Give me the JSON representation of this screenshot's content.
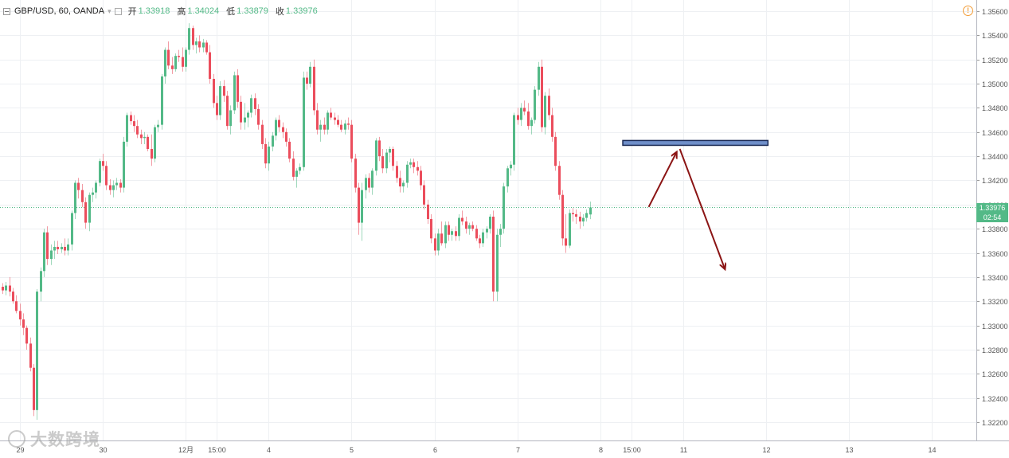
{
  "legend": {
    "symbol": "GBP/USD, 60, OANDA",
    "open_label": "开",
    "open": "1.33918",
    "high_label": "高",
    "high": "1.34024",
    "low_label": "低",
    "low": "1.33879",
    "close_label": "收",
    "close": "1.33976"
  },
  "price_tag": {
    "price": "1.33976",
    "countdown": "02:54"
  },
  "watermark": {
    "text": "大数跨境"
  },
  "colors": {
    "up": "#53b987",
    "down": "#eb4d5c",
    "level_zone": "#6f8fc9",
    "projection_arrow": "#8b1414"
  },
  "icons": {
    "alert": "alert-icon",
    "collapse": "collapse-icon"
  },
  "chart_data": {
    "type": "candlestick",
    "title": "GBP/USD, 60, OANDA",
    "ylim": [
      1.3208,
      1.3569
    ],
    "y_ticks": [
      "1.35600",
      "1.35400",
      "1.35200",
      "1.35000",
      "1.34800",
      "1.34600",
      "1.34400",
      "1.34200",
      "1.34000",
      "1.33800",
      "1.33600",
      "1.33400",
      "1.33200",
      "1.33000",
      "1.32800",
      "1.32600",
      "1.32400",
      "1.32200"
    ],
    "x_ticks": [
      {
        "label": "29",
        "bar": 5
      },
      {
        "label": "30",
        "bar": 29
      },
      {
        "label": "12月",
        "bar": 53
      },
      {
        "label": "15:00",
        "bar": 62
      },
      {
        "label": "4",
        "bar": 77
      },
      {
        "label": "5",
        "bar": 101
      },
      {
        "label": "6",
        "bar": 125
      },
      {
        "label": "7",
        "bar": 149
      },
      {
        "label": "8",
        "bar": 173
      },
      {
        "label": "15:00",
        "bar": 182
      },
      {
        "label": "11",
        "bar": 197
      },
      {
        "label": "12",
        "bar": 221
      },
      {
        "label": "13",
        "bar": 245
      },
      {
        "label": "14",
        "bar": 269
      }
    ],
    "current_price": 1.33976,
    "grid": true,
    "candles": [
      [
        1.3332,
        1.3335,
        1.3326,
        1.3329
      ],
      [
        1.3329,
        1.3336,
        1.3325,
        1.3333
      ],
      [
        1.3333,
        1.334,
        1.3324,
        1.3328
      ],
      [
        1.3328,
        1.3331,
        1.3318,
        1.332
      ],
      [
        1.332,
        1.3325,
        1.331,
        1.3312
      ],
      [
        1.3312,
        1.3318,
        1.33,
        1.3305
      ],
      [
        1.3305,
        1.331,
        1.3292,
        1.3298
      ],
      [
        1.3298,
        1.33,
        1.328,
        1.3285
      ],
      [
        1.3285,
        1.329,
        1.3262,
        1.3265
      ],
      [
        1.3265,
        1.3268,
        1.3225,
        1.323
      ],
      [
        1.323,
        1.333,
        1.3222,
        1.3328
      ],
      [
        1.3328,
        1.3348,
        1.332,
        1.3345
      ],
      [
        1.3345,
        1.338,
        1.334,
        1.3377
      ],
      [
        1.3377,
        1.3382,
        1.335,
        1.3355
      ],
      [
        1.3355,
        1.3367,
        1.335,
        1.3362
      ],
      [
        1.3362,
        1.337,
        1.3355,
        1.3365
      ],
      [
        1.3365,
        1.337,
        1.3359,
        1.3363
      ],
      [
        1.3363,
        1.3368,
        1.336,
        1.3365
      ],
      [
        1.3365,
        1.3372,
        1.3358,
        1.3362
      ],
      [
        1.3362,
        1.3372,
        1.3358,
        1.3367
      ],
      [
        1.3367,
        1.3395,
        1.3362,
        1.3393
      ],
      [
        1.3393,
        1.342,
        1.3388,
        1.3418
      ],
      [
        1.3418,
        1.3422,
        1.3405,
        1.3412
      ],
      [
        1.3412,
        1.3417,
        1.3398,
        1.3402
      ],
      [
        1.3402,
        1.3406,
        1.338,
        1.3385
      ],
      [
        1.3385,
        1.341,
        1.3378,
        1.3408
      ],
      [
        1.3408,
        1.3414,
        1.3402,
        1.341
      ],
      [
        1.341,
        1.342,
        1.3405,
        1.3418
      ],
      [
        1.3418,
        1.3438,
        1.3415,
        1.3436
      ],
      [
        1.3436,
        1.3442,
        1.3428,
        1.3432
      ],
      [
        1.3432,
        1.3436,
        1.3412,
        1.3416
      ],
      [
        1.3416,
        1.3421,
        1.3408,
        1.3412
      ],
      [
        1.3412,
        1.342,
        1.3406,
        1.3416
      ],
      [
        1.3416,
        1.3422,
        1.3412,
        1.3418
      ],
      [
        1.3418,
        1.3421,
        1.341,
        1.3414
      ],
      [
        1.3414,
        1.3456,
        1.341,
        1.3452
      ],
      [
        1.3452,
        1.3476,
        1.3448,
        1.3474
      ],
      [
        1.3474,
        1.3477,
        1.3466,
        1.3469
      ],
      [
        1.3469,
        1.3474,
        1.346,
        1.3465
      ],
      [
        1.3465,
        1.347,
        1.3455,
        1.3458
      ],
      [
        1.3458,
        1.3462,
        1.345,
        1.3455
      ],
      [
        1.3455,
        1.346,
        1.345,
        1.3456
      ],
      [
        1.3456,
        1.3458,
        1.3444,
        1.3446
      ],
      [
        1.3446,
        1.3458,
        1.3432,
        1.3438
      ],
      [
        1.3438,
        1.3466,
        1.3435,
        1.3464
      ],
      [
        1.3464,
        1.347,
        1.346,
        1.3466
      ],
      [
        1.3466,
        1.3508,
        1.3462,
        1.3506
      ],
      [
        1.3506,
        1.353,
        1.35,
        1.3528
      ],
      [
        1.3528,
        1.3535,
        1.3512,
        1.3515
      ],
      [
        1.3515,
        1.3522,
        1.3508,
        1.3512
      ],
      [
        1.3512,
        1.3525,
        1.351,
        1.3523
      ],
      [
        1.3523,
        1.3528,
        1.3518,
        1.3522
      ],
      [
        1.3522,
        1.353,
        1.351,
        1.3514
      ],
      [
        1.3514,
        1.353,
        1.351,
        1.3528
      ],
      [
        1.3528,
        1.355,
        1.3524,
        1.3546
      ],
      [
        1.3546,
        1.3548,
        1.3528,
        1.3532
      ],
      [
        1.3532,
        1.3538,
        1.3525,
        1.3535
      ],
      [
        1.3535,
        1.354,
        1.3526,
        1.353
      ],
      [
        1.353,
        1.3537,
        1.3526,
        1.3534
      ],
      [
        1.3534,
        1.3536,
        1.3524,
        1.3526
      ],
      [
        1.3526,
        1.3532,
        1.35,
        1.3504
      ],
      [
        1.3504,
        1.3508,
        1.348,
        1.3484
      ],
      [
        1.3484,
        1.349,
        1.347,
        1.3474
      ],
      [
        1.3474,
        1.3502,
        1.347,
        1.3498
      ],
      [
        1.3498,
        1.3503,
        1.3485,
        1.349
      ],
      [
        1.349,
        1.3494,
        1.3462,
        1.3465
      ],
      [
        1.3465,
        1.3482,
        1.3458,
        1.3478
      ],
      [
        1.3478,
        1.351,
        1.3475,
        1.3507
      ],
      [
        1.3507,
        1.3512,
        1.348,
        1.3485
      ],
      [
        1.3485,
        1.349,
        1.3462,
        1.3468
      ],
      [
        1.3468,
        1.3484,
        1.3462,
        1.3472
      ],
      [
        1.3472,
        1.3478,
        1.3464,
        1.3476
      ],
      [
        1.3476,
        1.3491,
        1.3472,
        1.3488
      ],
      [
        1.3488,
        1.3492,
        1.3474,
        1.3479
      ],
      [
        1.3479,
        1.3483,
        1.3462,
        1.3466
      ],
      [
        1.3466,
        1.347,
        1.3446,
        1.345
      ],
      [
        1.345,
        1.3455,
        1.343,
        1.3434
      ],
      [
        1.3434,
        1.3452,
        1.3428,
        1.3448
      ],
      [
        1.3448,
        1.346,
        1.3444,
        1.3457
      ],
      [
        1.3457,
        1.3472,
        1.3453,
        1.347
      ],
      [
        1.347,
        1.3474,
        1.346,
        1.3464
      ],
      [
        1.3464,
        1.3468,
        1.3455,
        1.346
      ],
      [
        1.346,
        1.3463,
        1.3448,
        1.3452
      ],
      [
        1.3452,
        1.3455,
        1.3435,
        1.3438
      ],
      [
        1.3438,
        1.3444,
        1.342,
        1.3423
      ],
      [
        1.3423,
        1.343,
        1.3414,
        1.3428
      ],
      [
        1.3428,
        1.3434,
        1.3425,
        1.3431
      ],
      [
        1.3431,
        1.351,
        1.3428,
        1.3505
      ],
      [
        1.3505,
        1.351,
        1.3495,
        1.35
      ],
      [
        1.35,
        1.3518,
        1.3497,
        1.3514
      ],
      [
        1.3514,
        1.352,
        1.3474,
        1.3478
      ],
      [
        1.3478,
        1.3484,
        1.3458,
        1.3462
      ],
      [
        1.3462,
        1.347,
        1.3452,
        1.3466
      ],
      [
        1.3466,
        1.3472,
        1.3458,
        1.3462
      ],
      [
        1.3462,
        1.3478,
        1.3458,
        1.3476
      ],
      [
        1.3476,
        1.348,
        1.347,
        1.3472
      ],
      [
        1.3472,
        1.3476,
        1.3466,
        1.347
      ],
      [
        1.347,
        1.3474,
        1.3464,
        1.3466
      ],
      [
        1.3466,
        1.347,
        1.346,
        1.3462
      ],
      [
        1.3462,
        1.347,
        1.3458,
        1.3467
      ],
      [
        1.3467,
        1.3472,
        1.3462,
        1.3466
      ],
      [
        1.3466,
        1.347,
        1.3435,
        1.3438
      ],
      [
        1.3438,
        1.3442,
        1.341,
        1.3414
      ],
      [
        1.3414,
        1.3418,
        1.3375,
        1.3385
      ],
      [
        1.3385,
        1.3418,
        1.337,
        1.3412
      ],
      [
        1.3412,
        1.3425,
        1.3405,
        1.3422
      ],
      [
        1.3422,
        1.3426,
        1.341,
        1.3414
      ],
      [
        1.3414,
        1.343,
        1.3408,
        1.3428
      ],
      [
        1.3428,
        1.3455,
        1.3424,
        1.3453
      ],
      [
        1.3453,
        1.3456,
        1.3436,
        1.344
      ],
      [
        1.344,
        1.3446,
        1.3426,
        1.343
      ],
      [
        1.343,
        1.3446,
        1.3426,
        1.3443
      ],
      [
        1.3443,
        1.3448,
        1.3435,
        1.3446
      ],
      [
        1.3446,
        1.3448,
        1.3428,
        1.3432
      ],
      [
        1.3432,
        1.3436,
        1.3418,
        1.3422
      ],
      [
        1.3422,
        1.3428,
        1.341,
        1.3415
      ],
      [
        1.3415,
        1.342,
        1.341,
        1.3418
      ],
      [
        1.3418,
        1.3436,
        1.3414,
        1.3433
      ],
      [
        1.3433,
        1.3438,
        1.343,
        1.3435
      ],
      [
        1.3435,
        1.3438,
        1.3426,
        1.3431
      ],
      [
        1.3431,
        1.3436,
        1.3424,
        1.3428
      ],
      [
        1.3428,
        1.3432,
        1.3412,
        1.3416
      ],
      [
        1.3416,
        1.342,
        1.3396,
        1.34
      ],
      [
        1.34,
        1.3404,
        1.3384,
        1.3388
      ],
      [
        1.3388,
        1.3392,
        1.3368,
        1.3372
      ],
      [
        1.3372,
        1.3376,
        1.3358,
        1.3362
      ],
      [
        1.3362,
        1.338,
        1.3358,
        1.3376
      ],
      [
        1.3376,
        1.3386,
        1.3366,
        1.3368
      ],
      [
        1.3368,
        1.3386,
        1.3364,
        1.3383
      ],
      [
        1.3383,
        1.3386,
        1.337,
        1.3375
      ],
      [
        1.3375,
        1.338,
        1.337,
        1.3378
      ],
      [
        1.3378,
        1.3382,
        1.337,
        1.3374
      ],
      [
        1.3374,
        1.3392,
        1.337,
        1.3389
      ],
      [
        1.3389,
        1.3395,
        1.3383,
        1.3386
      ],
      [
        1.3386,
        1.339,
        1.3376,
        1.338
      ],
      [
        1.338,
        1.3385,
        1.3375,
        1.3383
      ],
      [
        1.3383,
        1.3386,
        1.3378,
        1.338
      ],
      [
        1.338,
        1.3383,
        1.337,
        1.3372
      ],
      [
        1.3372,
        1.3375,
        1.3364,
        1.3368
      ],
      [
        1.3368,
        1.338,
        1.3365,
        1.3377
      ],
      [
        1.3377,
        1.3382,
        1.3372,
        1.338
      ],
      [
        1.338,
        1.3392,
        1.3376,
        1.339
      ],
      [
        1.339,
        1.3395,
        1.332,
        1.3328
      ],
      [
        1.3328,
        1.338,
        1.332,
        1.3375
      ],
      [
        1.3375,
        1.3384,
        1.3365,
        1.338
      ],
      [
        1.338,
        1.3418,
        1.3376,
        1.3415
      ],
      [
        1.3415,
        1.3432,
        1.341,
        1.343
      ],
      [
        1.343,
        1.3436,
        1.3424,
        1.3433
      ],
      [
        1.3433,
        1.3476,
        1.3428,
        1.3474
      ],
      [
        1.3474,
        1.348,
        1.3466,
        1.347
      ],
      [
        1.347,
        1.3484,
        1.3465,
        1.348
      ],
      [
        1.348,
        1.3486,
        1.3474,
        1.3477
      ],
      [
        1.3477,
        1.3484,
        1.3462,
        1.3465
      ],
      [
        1.3465,
        1.3472,
        1.3458,
        1.347
      ],
      [
        1.347,
        1.3498,
        1.3467,
        1.3495
      ],
      [
        1.3495,
        1.3518,
        1.349,
        1.3514
      ],
      [
        1.3514,
        1.352,
        1.346,
        1.3464
      ],
      [
        1.3464,
        1.3493,
        1.3458,
        1.349
      ],
      [
        1.349,
        1.3496,
        1.347,
        1.3474
      ],
      [
        1.3474,
        1.348,
        1.3452,
        1.3456
      ],
      [
        1.3456,
        1.346,
        1.3428,
        1.3432
      ],
      [
        1.3432,
        1.3436,
        1.3404,
        1.3408
      ],
      [
        1.3408,
        1.3412,
        1.3366,
        1.3372
      ],
      [
        1.3372,
        1.3392,
        1.336,
        1.3366
      ],
      [
        1.3366,
        1.3396,
        1.3364,
        1.3393
      ],
      [
        1.3393,
        1.3397,
        1.3386,
        1.3392
      ],
      [
        1.3392,
        1.3396,
        1.3384,
        1.339
      ],
      [
        1.339,
        1.3394,
        1.338,
        1.3386
      ],
      [
        1.3386,
        1.3392,
        1.3382,
        1.3389
      ],
      [
        1.3389,
        1.3396,
        1.3386,
        1.3393
      ],
      [
        1.33918,
        1.34024,
        1.33879,
        1.33976
      ]
    ],
    "annotations": [
      {
        "type": "rectangle",
        "price_top": 1.3453,
        "price_bottom": 1.3449,
        "bar_start": 179.5,
        "bar_end": 221.5
      },
      {
        "type": "arrow",
        "from": {
          "bar": 187,
          "price": 1.3398
        },
        "to": {
          "bar": 195,
          "price": 1.3443
        }
      },
      {
        "type": "arrow",
        "from": {
          "bar": 196,
          "price": 1.3446
        },
        "to": {
          "bar": 209,
          "price": 1.3347
        }
      }
    ]
  }
}
